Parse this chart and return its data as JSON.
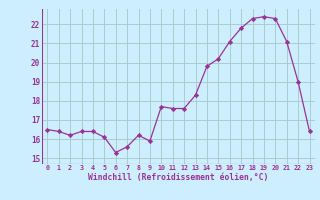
{
  "x": [
    0,
    1,
    2,
    3,
    4,
    5,
    6,
    7,
    8,
    9,
    10,
    11,
    12,
    13,
    14,
    15,
    16,
    17,
    18,
    19,
    20,
    21,
    22,
    23
  ],
  "y": [
    16.5,
    16.4,
    16.2,
    16.4,
    16.4,
    16.1,
    15.3,
    15.6,
    16.2,
    15.9,
    17.7,
    17.6,
    17.6,
    18.3,
    19.8,
    20.2,
    21.1,
    21.8,
    22.3,
    22.4,
    22.3,
    21.1,
    19.0,
    16.4
  ],
  "line_color": "#993399",
  "marker": "D",
  "marker_size": 2.2,
  "bg_color": "#cceeff",
  "grid_color": "#aacccc",
  "xlabel": "Windchill (Refroidissement éolien,°C)",
  "xlabel_color": "#993399",
  "font_color": "#993399",
  "ylabel_ticks": [
    15,
    16,
    17,
    18,
    19,
    20,
    21,
    22
  ],
  "ylim": [
    14.7,
    22.8
  ],
  "xlim": [
    -0.5,
    23.5
  ]
}
